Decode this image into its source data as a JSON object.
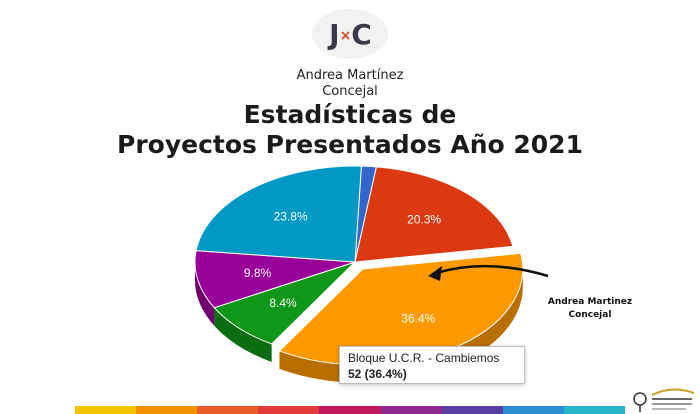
{
  "header": {
    "logo_text_left": "J",
    "logo_text_x": "×",
    "logo_text_right": "C",
    "author_name": "Andrea Martínez",
    "author_role": "Concejal",
    "title_line1": "Estadísticas de",
    "title_line2": "Proyectos Presentados Año 2021"
  },
  "chart_data": {
    "type": "pie",
    "title": "Estadísticas de Proyectos Presentados Año 2021",
    "slices": [
      {
        "label": "",
        "value": 1.5,
        "color": "#3366cc"
      },
      {
        "label": "20.3%",
        "value": 20.3,
        "color": "#dc3912"
      },
      {
        "label": "36.4%",
        "value": 36.4,
        "color": "#ff9900",
        "name": "Bloque U.C.R. - Cambiemos",
        "count": 52
      },
      {
        "label": "8.4%",
        "value": 8.4,
        "color": "#109618"
      },
      {
        "label": "9.8%",
        "value": 9.8,
        "color": "#990099"
      },
      {
        "label": "23.8%",
        "value": 23.8,
        "color": "#0099c6"
      }
    ],
    "exploded_slice": "Bloque U.C.R. - Cambiemos"
  },
  "tooltip": {
    "name": "Bloque U.C.R. - Cambiemos",
    "value": "52 (36.4%)"
  },
  "annotation": {
    "line1": "Andrea Martinez",
    "line2": "Concejal"
  },
  "footer": {
    "stripe_colors": [
      "#f5c400",
      "#f39200",
      "#e85d2a",
      "#e23b3b",
      "#c1185b",
      "#8e2a8f",
      "#5b3fa0",
      "#2a8fd0",
      "#27b5c9"
    ]
  }
}
